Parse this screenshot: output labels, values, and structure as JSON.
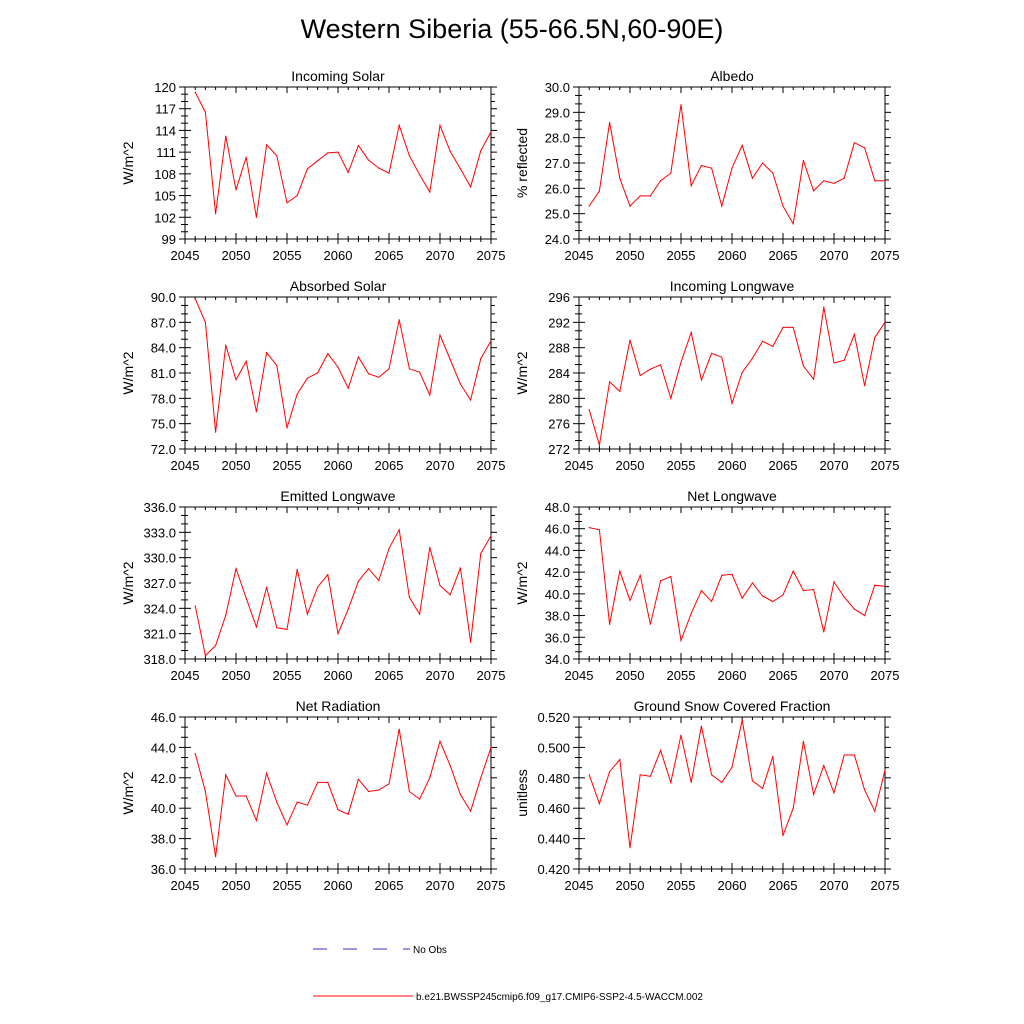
{
  "title": "Western Siberia (55-66.5N,60-90E)",
  "legend": [
    {
      "label": "No Obs",
      "color": "#3333cc",
      "style": "dashed"
    },
    {
      "label": "b.e21.BWSSP245cmip6.f09_g17.CMIP6-SSP2-4.5-WACCM.002",
      "color": "#ff0000",
      "style": "solid"
    }
  ],
  "chart_data": [
    {
      "type": "line",
      "title": "Incoming Solar",
      "ylabel": "W/m^2",
      "xlim": [
        2045,
        2075
      ],
      "xticks": [
        2045,
        2050,
        2055,
        2060,
        2065,
        2070,
        2075
      ],
      "ylim": [
        99,
        120
      ],
      "yticks": [
        99,
        102,
        105,
        108,
        111,
        114,
        117,
        120
      ],
      "ydecimals": 0,
      "series": [
        {
          "color": "#ff0000",
          "x": [
            2046,
            2047,
            2048,
            2049,
            2050,
            2051,
            2052,
            2053,
            2054,
            2055,
            2056,
            2057,
            2058,
            2059,
            2060,
            2061,
            2062,
            2063,
            2064,
            2065,
            2066,
            2067,
            2068,
            2069,
            2070,
            2071,
            2072,
            2073,
            2074,
            2075
          ],
          "y": [
            119.3,
            116.5,
            102.5,
            113.2,
            105.8,
            110.3,
            102.0,
            112.0,
            110.5,
            104.0,
            105.0,
            108.7,
            109.8,
            110.9,
            111.0,
            108.2,
            111.9,
            109.9,
            108.8,
            108.1,
            114.7,
            110.5,
            107.9,
            105.5,
            114.7,
            111.1,
            108.7,
            106.2,
            111.2,
            113.8
          ]
        }
      ]
    },
    {
      "type": "line",
      "title": "Albedo",
      "ylabel": "% reflected",
      "xlim": [
        2045,
        2075
      ],
      "xticks": [
        2045,
        2050,
        2055,
        2060,
        2065,
        2070,
        2075
      ],
      "ylim": [
        24,
        30
      ],
      "yticks": [
        24,
        25,
        26,
        27,
        28,
        29,
        30
      ],
      "ydecimals": 1,
      "series": [
        {
          "color": "#ff0000",
          "x": [
            2046,
            2047,
            2048,
            2049,
            2050,
            2051,
            2052,
            2053,
            2054,
            2055,
            2056,
            2057,
            2058,
            2059,
            2060,
            2061,
            2062,
            2063,
            2064,
            2065,
            2066,
            2067,
            2068,
            2069,
            2070,
            2071,
            2072,
            2073,
            2074,
            2075
          ],
          "y": [
            25.3,
            25.9,
            28.6,
            26.4,
            25.3,
            25.7,
            25.7,
            26.3,
            26.6,
            29.3,
            26.1,
            26.9,
            26.8,
            25.3,
            26.8,
            27.7,
            26.4,
            27.0,
            26.6,
            25.3,
            24.6,
            27.1,
            25.9,
            26.3,
            26.2,
            26.4,
            27.8,
            27.6,
            26.3,
            26.3
          ]
        }
      ]
    },
    {
      "type": "line",
      "title": "Absorbed Solar",
      "ylabel": "W/m^2",
      "xlim": [
        2045,
        2075
      ],
      "xticks": [
        2045,
        2050,
        2055,
        2060,
        2065,
        2070,
        2075
      ],
      "ylim": [
        72,
        90
      ],
      "yticks": [
        72,
        75,
        78,
        81,
        84,
        87,
        90
      ],
      "ydecimals": 1,
      "series": [
        {
          "color": "#ff0000",
          "x": [
            2046,
            2047,
            2048,
            2049,
            2050,
            2051,
            2052,
            2053,
            2054,
            2055,
            2056,
            2057,
            2058,
            2059,
            2060,
            2061,
            2062,
            2063,
            2064,
            2065,
            2066,
            2067,
            2068,
            2069,
            2070,
            2071,
            2072,
            2073,
            2074,
            2075
          ],
          "y": [
            89.8,
            87.0,
            74.0,
            84.3,
            80.2,
            82.4,
            76.4,
            83.4,
            81.9,
            74.5,
            78.5,
            80.4,
            81.0,
            83.3,
            81.7,
            79.2,
            82.9,
            80.9,
            80.5,
            81.5,
            87.3,
            81.5,
            81.1,
            78.4,
            85.5,
            82.6,
            79.7,
            77.8,
            82.7,
            84.8
          ]
        }
      ]
    },
    {
      "type": "line",
      "title": "Incoming Longwave",
      "ylabel": "W/m^2",
      "xlim": [
        2045,
        2075
      ],
      "xticks": [
        2045,
        2050,
        2055,
        2060,
        2065,
        2070,
        2075
      ],
      "ylim": [
        272,
        296
      ],
      "yticks": [
        272,
        276,
        280,
        284,
        288,
        292,
        296
      ],
      "ydecimals": 0,
      "series": [
        {
          "color": "#ff0000",
          "x": [
            2046,
            2047,
            2048,
            2049,
            2050,
            2051,
            2052,
            2053,
            2054,
            2055,
            2056,
            2057,
            2058,
            2059,
            2060,
            2061,
            2062,
            2063,
            2064,
            2065,
            2066,
            2067,
            2068,
            2069,
            2070,
            2071,
            2072,
            2073,
            2074,
            2075
          ],
          "y": [
            278.2,
            272.6,
            282.6,
            281.1,
            289.2,
            283.6,
            284.6,
            285.3,
            280.0,
            285.7,
            290.4,
            282.9,
            287.1,
            286.5,
            279.2,
            284.1,
            286.3,
            289.0,
            288.2,
            291.2,
            291.2,
            285.1,
            283.0,
            294.4,
            285.6,
            286.0,
            290.1,
            282.0,
            289.6,
            292.0
          ]
        }
      ]
    },
    {
      "type": "line",
      "title": "Emitted Longwave",
      "ylabel": "W/m^2",
      "xlim": [
        2045,
        2075
      ],
      "xticks": [
        2045,
        2050,
        2055,
        2060,
        2065,
        2070,
        2075
      ],
      "ylim": [
        318,
        336
      ],
      "yticks": [
        318,
        321,
        324,
        327,
        330,
        333,
        336
      ],
      "ydecimals": 1,
      "series": [
        {
          "color": "#ff0000",
          "x": [
            2046,
            2047,
            2048,
            2049,
            2050,
            2051,
            2052,
            2053,
            2054,
            2055,
            2056,
            2057,
            2058,
            2059,
            2060,
            2061,
            2062,
            2063,
            2064,
            2065,
            2066,
            2067,
            2068,
            2069,
            2070,
            2071,
            2072,
            2073,
            2074,
            2075
          ],
          "y": [
            324.3,
            318.4,
            319.6,
            323.2,
            328.7,
            325.2,
            321.8,
            326.5,
            321.7,
            321.5,
            328.6,
            323.3,
            326.5,
            328.0,
            321.0,
            323.9,
            327.2,
            328.7,
            327.3,
            331.1,
            333.3,
            325.3,
            323.3,
            331.2,
            326.7,
            325.6,
            328.8,
            320.0,
            330.5,
            332.6
          ]
        }
      ]
    },
    {
      "type": "line",
      "title": "Net Longwave",
      "ylabel": "W/m^2",
      "xlim": [
        2045,
        2075
      ],
      "xticks": [
        2045,
        2050,
        2055,
        2060,
        2065,
        2070,
        2075
      ],
      "ylim": [
        34,
        48
      ],
      "yticks": [
        34,
        36,
        38,
        40,
        42,
        44,
        46,
        48
      ],
      "ydecimals": 1,
      "series": [
        {
          "color": "#ff0000",
          "x": [
            2046,
            2047,
            2048,
            2049,
            2050,
            2051,
            2052,
            2053,
            2054,
            2055,
            2056,
            2057,
            2058,
            2059,
            2060,
            2061,
            2062,
            2063,
            2064,
            2065,
            2066,
            2067,
            2068,
            2069,
            2070,
            2071,
            2072,
            2073,
            2074,
            2075
          ],
          "y": [
            46.1,
            45.9,
            37.2,
            42.1,
            39.4,
            41.7,
            37.2,
            41.2,
            41.6,
            35.7,
            38.2,
            40.3,
            39.3,
            41.7,
            41.8,
            39.6,
            41.0,
            39.8,
            39.3,
            39.9,
            42.1,
            40.3,
            40.4,
            36.5,
            41.1,
            39.7,
            38.6,
            38.0,
            40.8,
            40.7
          ]
        }
      ]
    },
    {
      "type": "line",
      "title": "Net Radiation",
      "ylabel": "W/m^2",
      "xlim": [
        2045,
        2075
      ],
      "xticks": [
        2045,
        2050,
        2055,
        2060,
        2065,
        2070,
        2075
      ],
      "ylim": [
        36,
        46
      ],
      "yticks": [
        36,
        38,
        40,
        42,
        44,
        46
      ],
      "ydecimals": 1,
      "series": [
        {
          "color": "#ff0000",
          "x": [
            2046,
            2047,
            2048,
            2049,
            2050,
            2051,
            2052,
            2053,
            2054,
            2055,
            2056,
            2057,
            2058,
            2059,
            2060,
            2061,
            2062,
            2063,
            2064,
            2065,
            2066,
            2067,
            2068,
            2069,
            2070,
            2071,
            2072,
            2073,
            2074,
            2075
          ],
          "y": [
            43.6,
            41.1,
            36.8,
            42.2,
            40.8,
            40.8,
            39.2,
            42.3,
            40.4,
            38.9,
            40.4,
            40.2,
            41.7,
            41.7,
            39.9,
            39.6,
            41.9,
            41.1,
            41.2,
            41.6,
            45.2,
            41.1,
            40.6,
            42.0,
            44.4,
            42.8,
            40.9,
            39.8,
            42.0,
            44.0
          ]
        }
      ]
    },
    {
      "type": "line",
      "title": "Ground Snow Covered Fraction",
      "ylabel": "unitless",
      "xlim": [
        2045,
        2075
      ],
      "xticks": [
        2045,
        2050,
        2055,
        2060,
        2065,
        2070,
        2075
      ],
      "ylim": [
        0.42,
        0.52
      ],
      "yticks": [
        0.42,
        0.44,
        0.46,
        0.48,
        0.5,
        0.52
      ],
      "ydecimals": 3,
      "series": [
        {
          "color": "#ff0000",
          "x": [
            2046,
            2047,
            2048,
            2049,
            2050,
            2051,
            2052,
            2053,
            2054,
            2055,
            2056,
            2057,
            2058,
            2059,
            2060,
            2061,
            2062,
            2063,
            2064,
            2065,
            2066,
            2067,
            2068,
            2069,
            2070,
            2071,
            2072,
            2073,
            2074,
            2075
          ],
          "y": [
            0.482,
            0.463,
            0.484,
            0.492,
            0.434,
            0.482,
            0.481,
            0.498,
            0.477,
            0.508,
            0.477,
            0.514,
            0.482,
            0.477,
            0.487,
            0.518,
            0.478,
            0.473,
            0.494,
            0.442,
            0.46,
            0.504,
            0.469,
            0.488,
            0.47,
            0.495,
            0.495,
            0.472,
            0.458,
            0.485
          ]
        }
      ]
    }
  ]
}
